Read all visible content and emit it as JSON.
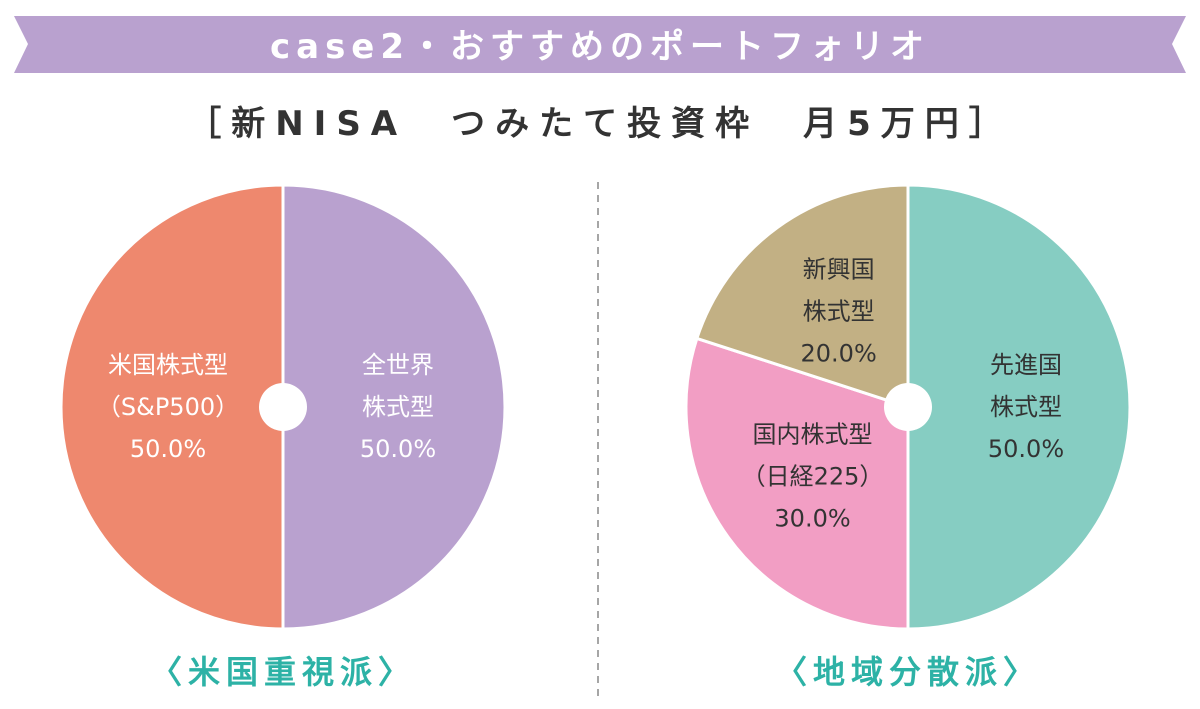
{
  "header": {
    "banner_text": "case2・おすすめのポートフォリオ",
    "banner_color": "#b9a1cf",
    "subtitle": "［新NISA　つみたて投資枠　月5万円］"
  },
  "chart_data": [
    {
      "type": "pie",
      "title": "〈米国重視派〉",
      "title_color": "#2db2a6",
      "slices": [
        {
          "lines": [
            "全世界",
            "株式型"
          ],
          "value": 50.0,
          "value_label": "50.0%",
          "color": "#b9a1cf",
          "text_color": "#ffffff"
        },
        {
          "lines": [
            "米国株式型",
            "（S&P500）"
          ],
          "value": 50.0,
          "value_label": "50.0%",
          "color": "#ee886e",
          "text_color": "#ffffff"
        }
      ]
    },
    {
      "type": "pie",
      "title": "〈地域分散派〉",
      "title_color": "#2db2a6",
      "slices": [
        {
          "lines": [
            "先進国",
            "株式型"
          ],
          "value": 50.0,
          "value_label": "50.0%",
          "color": "#86cdc2",
          "text_color": "#333333"
        },
        {
          "lines": [
            "国内株式型",
            "（日経225）"
          ],
          "value": 30.0,
          "value_label": "30.0%",
          "color": "#f29ec4",
          "text_color": "#333333"
        },
        {
          "lines": [
            "新興国",
            "株式型"
          ],
          "value": 20.0,
          "value_label": "20.0%",
          "color": "#c2b084",
          "text_color": "#333333"
        }
      ]
    }
  ]
}
